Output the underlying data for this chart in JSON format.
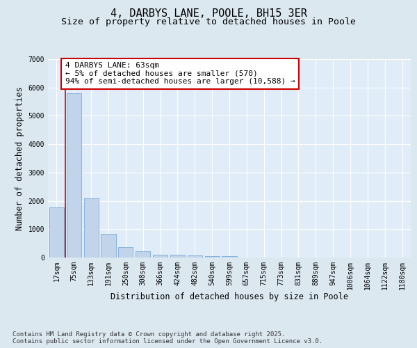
{
  "title": "4, DARBYS LANE, POOLE, BH15 3ER",
  "subtitle": "Size of property relative to detached houses in Poole",
  "xlabel": "Distribution of detached houses by size in Poole",
  "ylabel": "Number of detached properties",
  "categories": [
    "17sqm",
    "75sqm",
    "133sqm",
    "191sqm",
    "250sqm",
    "308sqm",
    "366sqm",
    "424sqm",
    "482sqm",
    "540sqm",
    "599sqm",
    "657sqm",
    "715sqm",
    "773sqm",
    "831sqm",
    "889sqm",
    "947sqm",
    "1006sqm",
    "1064sqm",
    "1122sqm",
    "1180sqm"
  ],
  "values": [
    1780,
    5800,
    2080,
    830,
    370,
    220,
    110,
    90,
    65,
    55,
    50,
    0,
    0,
    0,
    0,
    0,
    0,
    0,
    0,
    0,
    0
  ],
  "bar_color": "#c2d4ea",
  "bar_edge_color": "#7aabda",
  "vline_color": "#cc0000",
  "vline_x": 0.5,
  "annotation_text": "4 DARBYS LANE: 63sqm\n← 5% of detached houses are smaller (570)\n94% of semi-detached houses are larger (10,588) →",
  "annotation_box_facecolor": "#ffffff",
  "annotation_box_edgecolor": "#cc0000",
  "ylim_max": 7000,
  "yticks": [
    0,
    1000,
    2000,
    3000,
    4000,
    5000,
    6000,
    7000
  ],
  "background_color": "#dce8f0",
  "plot_background": "#e0ecf8",
  "grid_color": "#ffffff",
  "footer_text": "Contains HM Land Registry data © Crown copyright and database right 2025.\nContains public sector information licensed under the Open Government Licence v3.0.",
  "title_fontsize": 11,
  "subtitle_fontsize": 9.5,
  "axis_label_fontsize": 8.5,
  "tick_fontsize": 7,
  "annotation_fontsize": 8,
  "footer_fontsize": 6.5
}
